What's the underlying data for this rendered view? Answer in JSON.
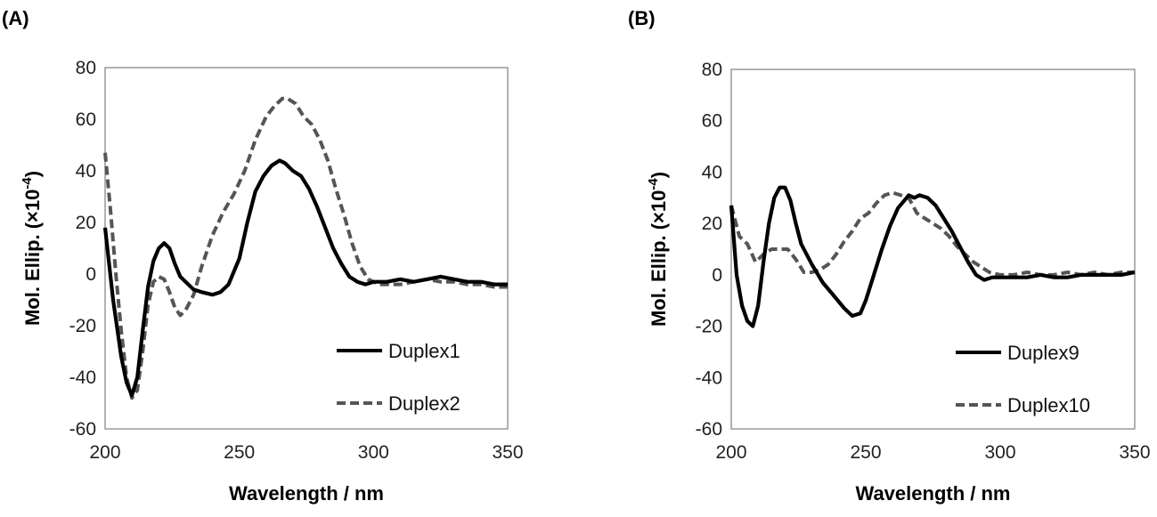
{
  "chart_data": [
    {
      "type": "line",
      "panel_label": "(A)",
      "xlabel": "Wavelength / nm",
      "ylabel_main": "Mol. Ellip. (×10",
      "ylabel_exp": "-4",
      "ylabel_close": ")",
      "xlim": [
        200,
        350
      ],
      "ylim": [
        -60,
        80
      ],
      "xticks": [
        "200",
        "250",
        "300",
        "350"
      ],
      "yticks": [
        "80",
        "60",
        "40",
        "20",
        "0",
        "-20",
        "-40",
        "-60"
      ],
      "grid": false,
      "legend_position": "bottom-right",
      "series": [
        {
          "name": "Duplex1",
          "style": "solid",
          "color": "#000000",
          "x": [
            200,
            203,
            206,
            208,
            210,
            212,
            214,
            216,
            218,
            220,
            222,
            224,
            226,
            228,
            230,
            233,
            236,
            240,
            243,
            246,
            250,
            253,
            256,
            259,
            262,
            265,
            267,
            270,
            273,
            276,
            279,
            282,
            285,
            288,
            291,
            294,
            297,
            300,
            305,
            310,
            315,
            320,
            325,
            330,
            335,
            340,
            345,
            350
          ],
          "y": [
            18,
            -10,
            -32,
            -42,
            -47,
            -40,
            -22,
            -5,
            5,
            10,
            12,
            10,
            4,
            -1,
            -3,
            -6,
            -7,
            -8,
            -7,
            -4,
            6,
            20,
            32,
            38,
            42,
            44,
            43,
            40,
            38,
            33,
            26,
            18,
            10,
            4,
            -1,
            -3,
            -4,
            -3,
            -3,
            -2,
            -3,
            -2,
            -1,
            -2,
            -3,
            -3,
            -4,
            -4
          ]
        },
        {
          "name": "Duplex2",
          "style": "dashed",
          "color": "#555555",
          "x": [
            200,
            202,
            204,
            206,
            208,
            210,
            212,
            214,
            216,
            218,
            220,
            222,
            224,
            226,
            228,
            230,
            233,
            236,
            240,
            244,
            248,
            252,
            256,
            260,
            263,
            266,
            268,
            271,
            274,
            277,
            280,
            283,
            286,
            289,
            292,
            295,
            298,
            302,
            305,
            310,
            315,
            320,
            325,
            330,
            335,
            340,
            345,
            350
          ],
          "y": [
            47,
            25,
            0,
            -22,
            -40,
            -48,
            -45,
            -30,
            -12,
            -3,
            -1,
            -2,
            -7,
            -13,
            -16,
            -14,
            -8,
            3,
            15,
            24,
            31,
            40,
            52,
            61,
            65,
            68,
            68,
            66,
            61,
            58,
            52,
            44,
            33,
            23,
            12,
            3,
            -2,
            -4,
            -4,
            -4,
            -3,
            -2,
            -3,
            -3,
            -4,
            -4,
            -5,
            -5
          ]
        }
      ]
    },
    {
      "type": "line",
      "panel_label": "(B)",
      "xlabel": "Wavelength / nm",
      "ylabel_main": "Mol. Ellip. (×10",
      "ylabel_exp": "-4",
      "ylabel_close": ")",
      "xlim": [
        200,
        350
      ],
      "ylim": [
        -60,
        80
      ],
      "xticks": [
        "200",
        "250",
        "300",
        "350"
      ],
      "yticks": [
        "80",
        "60",
        "40",
        "20",
        "0",
        "-20",
        "-40",
        "-60"
      ],
      "grid": false,
      "legend_position": "bottom-right",
      "series": [
        {
          "name": "Duplex9",
          "style": "solid",
          "color": "#000000",
          "x": [
            200,
            202,
            204,
            206,
            208,
            210,
            212,
            214,
            216,
            218,
            220,
            222,
            224,
            226,
            228,
            230,
            234,
            238,
            242,
            245,
            248,
            250,
            253,
            256,
            259,
            262,
            266,
            268,
            270,
            273,
            276,
            279,
            282,
            285,
            288,
            291,
            294,
            297,
            300,
            305,
            310,
            315,
            320,
            325,
            330,
            335,
            340,
            345,
            350
          ],
          "y": [
            27,
            0,
            -12,
            -18,
            -20,
            -12,
            5,
            20,
            30,
            34,
            34,
            29,
            20,
            12,
            8,
            4,
            -3,
            -8,
            -13,
            -16,
            -15,
            -10,
            0,
            10,
            19,
            26,
            31,
            30,
            31,
            30,
            27,
            22,
            17,
            11,
            5,
            0,
            -2,
            -1,
            -1,
            -1,
            -1,
            0,
            -1,
            -1,
            0,
            0,
            0,
            0,
            1
          ]
        },
        {
          "name": "Duplex10",
          "style": "dashed",
          "color": "#555555",
          "x": [
            200,
            203,
            206,
            209,
            212,
            215,
            218,
            221,
            224,
            227,
            230,
            233,
            236,
            239,
            242,
            245,
            248,
            251,
            254,
            257,
            260,
            263,
            266,
            269,
            272,
            275,
            278,
            281,
            284,
            287,
            290,
            293,
            296,
            300,
            305,
            310,
            315,
            320,
            325,
            330,
            335,
            340,
            345,
            350
          ],
          "y": [
            27,
            15,
            12,
            5,
            8,
            10,
            10,
            10,
            6,
            1,
            1,
            2,
            4,
            8,
            13,
            17,
            22,
            24,
            28,
            31,
            32,
            31,
            30,
            24,
            22,
            20,
            18,
            15,
            11,
            8,
            5,
            3,
            1,
            0,
            0,
            1,
            0,
            0,
            1,
            0,
            1,
            0,
            1,
            1
          ]
        }
      ]
    }
  ]
}
